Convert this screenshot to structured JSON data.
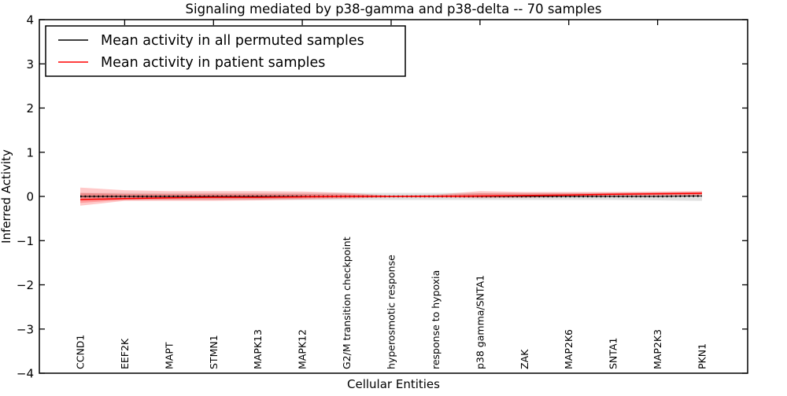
{
  "chart_data": {
    "type": "line",
    "title": "Signaling mediated by p38-gamma and p38-delta -- 70 samples",
    "xlabel": "Cellular Entities",
    "ylabel": "Inferred Activity",
    "ylim": [
      -4,
      4
    ],
    "yticks": [
      "4",
      "3",
      "2",
      "1",
      "0",
      "−1",
      "−2",
      "−3",
      "−4"
    ],
    "ytick_values": [
      4,
      3,
      2,
      1,
      0,
      -1,
      -2,
      -3,
      -4
    ],
    "grid": false,
    "legend_position": "upper-left",
    "categories": [
      "CCND1",
      "EEF2K",
      "MAPT",
      "STMN1",
      "MAPK13",
      "MAPK12",
      "G2/M transition checkpoint",
      "hyperosmotic response",
      "response to hypoxia",
      "p38 gamma/SNTA1",
      "ZAK",
      "MAP2K6",
      "SNTA1",
      "MAP2K3",
      "PKN1"
    ],
    "series": [
      {
        "name": "Mean activity in all permuted samples",
        "color": "#000000",
        "values": [
          0.0,
          0.0,
          0.0,
          0.0,
          0.0,
          0.0,
          0.0,
          0.0,
          0.0,
          0.0,
          0.0,
          0.0,
          0.0,
          0.0,
          0.01
        ]
      },
      {
        "name": "Mean activity in patient samples",
        "color": "#ff0000",
        "values": [
          -0.07,
          -0.05,
          -0.03,
          -0.02,
          -0.02,
          -0.01,
          0.0,
          0.0,
          0.0,
          0.01,
          0.02,
          0.03,
          0.05,
          0.06,
          0.07
        ]
      }
    ],
    "bands": [
      {
        "name": "permuted samples std band",
        "color": "#999999",
        "upper": [
          0.08,
          0.08,
          0.08,
          0.08,
          0.08,
          0.08,
          0.08,
          0.08,
          0.08,
          0.08,
          0.08,
          0.08,
          0.08,
          0.09,
          0.1
        ],
        "lower": [
          -0.08,
          -0.08,
          -0.08,
          -0.08,
          -0.08,
          -0.08,
          -0.08,
          -0.08,
          -0.08,
          -0.08,
          -0.08,
          -0.08,
          -0.08,
          -0.09,
          -0.1
        ]
      },
      {
        "name": "patient samples std band",
        "color": "#ff0000",
        "upper": [
          0.2,
          0.14,
          0.12,
          0.12,
          0.12,
          0.11,
          0.08,
          0.02,
          0.04,
          0.12,
          0.1,
          0.1,
          0.1,
          0.11,
          0.12
        ],
        "lower": [
          -0.21,
          -0.1,
          -0.1,
          -0.1,
          -0.09,
          -0.07,
          -0.05,
          -0.02,
          -0.02,
          -0.04,
          -0.03,
          -0.01,
          0.0,
          0.01,
          0.02
        ]
      }
    ]
  }
}
